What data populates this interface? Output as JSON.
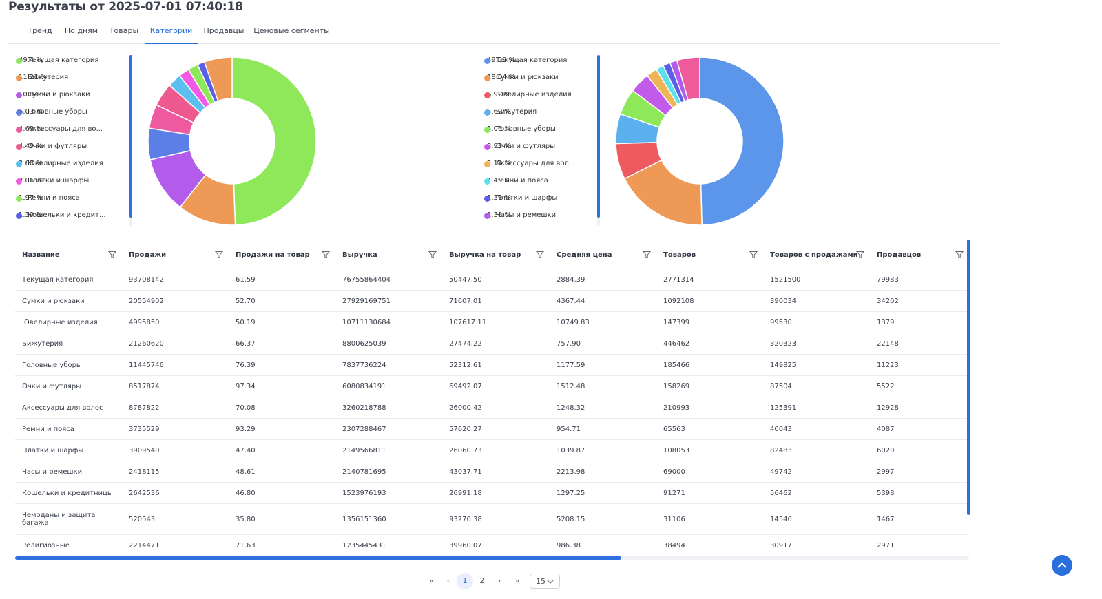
{
  "page": {
    "title": "Результаты от 2025-07-01 07:40:18"
  },
  "tabs": [
    {
      "label": "Тренд",
      "active": false
    },
    {
      "label": "По дням",
      "active": false
    },
    {
      "label": "Товары",
      "active": false
    },
    {
      "label": "Категории",
      "active": true
    },
    {
      "label": "Продавцы",
      "active": false
    },
    {
      "label": "Ценовые сегменты",
      "active": false
    }
  ],
  "chart_data": [
    {
      "type": "pie",
      "categories": [
        "Текущая категория",
        "Бижутерия",
        "Сумки и рюкзаки",
        "Головные уборы",
        "Аксессуары для во...",
        "Очки и футляры",
        "Ювелирные изделия",
        "Платки и шарфы",
        "Ремни и пояса",
        "Кошельки и кредит..."
      ],
      "labels": [
        "Текущая категория",
        "Бижутерия",
        "Сумки и рюкзаки",
        "Головные уборы",
        "Аксессуары для во...",
        "Очки и футляры",
        "Ювелирные изделия",
        "Платки и шарфы",
        "Ремни и пояса",
        "Кошельки и кредит..."
      ],
      "values": [
        49.4,
        11.21,
        10.84,
        6.03,
        4.63,
        4.49,
        2.63,
        2.06,
        1.97,
        1.39
      ],
      "value_labels": [
        "49.4 %",
        "11.21 %",
        "10.84 %",
        "6.03 %",
        "4.63 %",
        "4.49 %",
        "2.63 %",
        "2.06 %",
        "1.97 %",
        "1.39 %"
      ],
      "colors": [
        "#8ee85a",
        "#ee9955",
        "#b35bea",
        "#5b7fe6",
        "#ee5aa0",
        "#ee5a8e",
        "#5bc0ee",
        "#f25ae6",
        "#8ee85a",
        "#5b5ee6"
      ],
      "extra_slices": [
        {
          "value": 5.35,
          "color": "#ee9955"
        }
      ],
      "legend_position": "left"
    },
    {
      "type": "pie",
      "categories": [
        "Текущая категория",
        "Сумки и рюкзаки",
        "Ювелирные изделия",
        "Бижутерия",
        "Головные уборы",
        "Очки и футляры",
        "Аксессуары для вол...",
        "Ремни и пояса",
        "Платки и шарфы",
        "Часы и ремешки"
      ],
      "labels": [
        "Текущая категория",
        "Сумки и рюкзаки",
        "Ювелирные изделия",
        "Бижутерия",
        "Головные уборы",
        "Очки и футляры",
        "Аксессуары для вол...",
        "Ремни и пояса",
        "Платки и шарфы",
        "Часы и ремешки"
      ],
      "values": [
        49.59,
        18.04,
        6.92,
        5.69,
        5.06,
        3.93,
        2.11,
        1.49,
        1.39,
        1.38
      ],
      "value_labels": [
        "49.59 %",
        "18.04 %",
        "6.92 %",
        "5.69 %",
        "5.06 %",
        "3.93 %",
        "2.11 %",
        "1.49 %",
        "1.39 %",
        "1.38 %"
      ],
      "colors": [
        "#5b96ea",
        "#ee9955",
        "#ee5a60",
        "#5bb0ee",
        "#8ee85a",
        "#c25aea",
        "#eeb455",
        "#5ae0ee",
        "#5b5ee6",
        "#b35bea"
      ],
      "extra_slices": [
        {
          "value": 4.4,
          "color": "#ee5a9a"
        }
      ],
      "legend_position": "left"
    }
  ],
  "table": {
    "columns": [
      "Название",
      "Продажи",
      "Продажи на товар",
      "Выручка",
      "Выручка на товар",
      "Средняя цена",
      "Товаров",
      "Товаров с продажами",
      "Продавцов"
    ],
    "rows": [
      [
        "Текущая категория",
        "93708142",
        "61.59",
        "76755864404",
        "50447.50",
        "2884.39",
        "2771314",
        "1521500",
        "79983"
      ],
      [
        "Сумки и рюкзаки",
        "20554902",
        "52.70",
        "27929169751",
        "71607.01",
        "4367.44",
        "1092108",
        "390034",
        "34202"
      ],
      [
        "Ювелирные изделия",
        "4995850",
        "50.19",
        "10711130684",
        "107617.11",
        "10749.83",
        "147399",
        "99530",
        "1379"
      ],
      [
        "Бижутерия",
        "21260620",
        "66.37",
        "8800625039",
        "27474.22",
        "757.90",
        "446462",
        "320323",
        "22148"
      ],
      [
        "Головные уборы",
        "11445746",
        "76.39",
        "7837736224",
        "52312.61",
        "1177.59",
        "185466",
        "149825",
        "11223"
      ],
      [
        "Очки и футляры",
        "8517874",
        "97.34",
        "6080834191",
        "69492.07",
        "1512.48",
        "158269",
        "87504",
        "5522"
      ],
      [
        "Аксессуары для волос",
        "8787822",
        "70.08",
        "3260218788",
        "26000.42",
        "1248.32",
        "210993",
        "125391",
        "12928"
      ],
      [
        "Ремни и пояса",
        "3735529",
        "93.29",
        "2307288467",
        "57620.27",
        "954.71",
        "65563",
        "40043",
        "4087"
      ],
      [
        "Платки и шарфы",
        "3909540",
        "47.40",
        "2149566811",
        "26060.73",
        "1039.87",
        "108053",
        "82483",
        "6020"
      ],
      [
        "Часы и ремешки",
        "2418115",
        "48.61",
        "2140781695",
        "43037.71",
        "2213.98",
        "69000",
        "49742",
        "2997"
      ],
      [
        "Кошельки и кредитницы",
        "2642536",
        "46.80",
        "1523976193",
        "26991.18",
        "1297.25",
        "91271",
        "56462",
        "5398"
      ],
      [
        "Чемоданы и защита багажа",
        "520543",
        "35.80",
        "1356151360",
        "93270.38",
        "5208.15",
        "31106",
        "14540",
        "1467"
      ],
      [
        "Религиозные",
        "2214471",
        "71.63",
        "1235445431",
        "39960.07",
        "986.38",
        "38494",
        "30917",
        "2971"
      ]
    ]
  },
  "pagination": {
    "pages": [
      "1",
      "2"
    ],
    "current": "1",
    "page_size": "15",
    "first_label": "«",
    "prev_label": "‹",
    "next_label": "›",
    "last_label": "»"
  },
  "icons": {
    "filter": "filter-icon",
    "scroll_top": "arrow-up-icon",
    "page_size_chevron": "chevron-down-icon"
  }
}
